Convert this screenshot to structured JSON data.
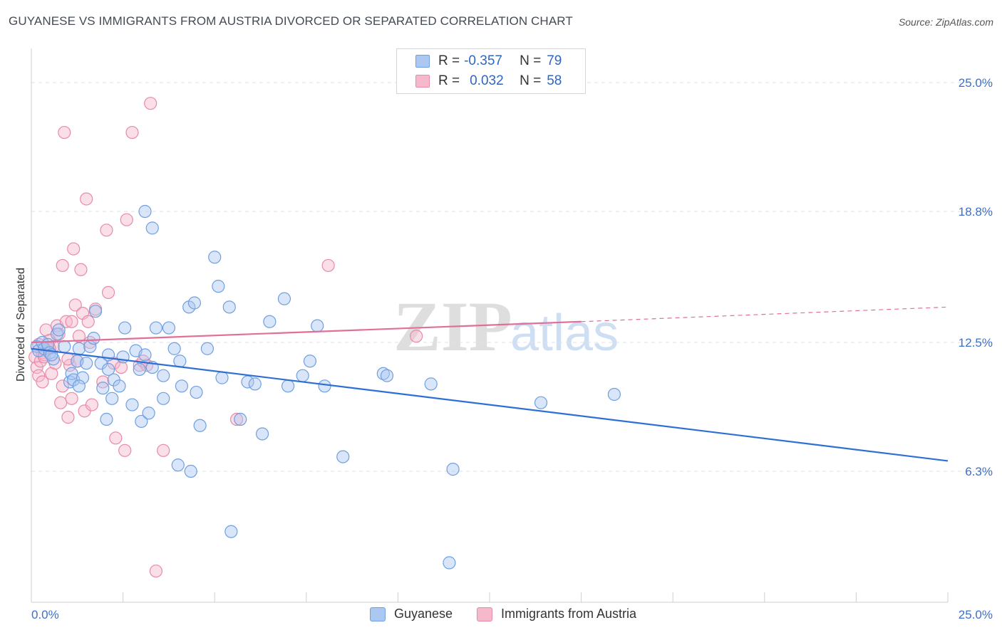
{
  "header": {
    "title": "GUYANESE VS IMMIGRANTS FROM AUSTRIA DIVORCED OR SEPARATED CORRELATION CHART",
    "source": "Source: ZipAtlas.com"
  },
  "legend": {
    "rows": [
      {
        "r_label": "R =",
        "r_value": "-0.357",
        "n_label": "N =",
        "n_value": "79"
      },
      {
        "r_label": "R =",
        "r_value": "0.032",
        "n_label": "N =",
        "n_value": "58"
      }
    ]
  },
  "bottom_legend": [
    "Guyanese",
    "Immigrants from Austria"
  ],
  "watermark": {
    "zip": "ZIP",
    "atlas": "atlas"
  },
  "colors": {
    "blue_fill": "#aac8f2",
    "blue_stroke": "#6f9fe0",
    "blue_line": "#2e6fd6",
    "pink_fill": "#f6b8cb",
    "pink_stroke": "#e98aa8",
    "pink_line": "#e07098",
    "tick_text": "#3d6fc9",
    "grid": "#dde2ea"
  },
  "chart_data": {
    "type": "scatter",
    "title": "GUYANESE VS IMMIGRANTS FROM AUSTRIA DIVORCED OR SEPARATED CORRELATION CHART",
    "xlabel": "",
    "ylabel": "Divorced or Separated",
    "xlim": [
      0,
      25
    ],
    "ylim": [
      0,
      26.3
    ],
    "x_tick_labels": [
      "0.0%",
      "25.0%"
    ],
    "y_ticks": [
      6.3,
      12.5,
      18.8,
      25.0
    ],
    "y_tick_labels": [
      "6.3%",
      "12.5%",
      "18.8%",
      "25.0%"
    ],
    "grid": true,
    "legend_position": "top-center",
    "series": [
      {
        "name": "Guyanese",
        "r": -0.357,
        "n": 79,
        "trend": {
          "x": [
            0.0,
            25.0
          ],
          "y": [
            12.2,
            6.8
          ]
        },
        "points": [
          [
            0.15,
            12.3
          ],
          [
            0.2,
            12.1
          ],
          [
            0.3,
            12.5
          ],
          [
            0.35,
            12.2
          ],
          [
            0.45,
            12.4
          ],
          [
            0.5,
            12.0
          ],
          [
            0.6,
            11.7
          ],
          [
            0.7,
            12.9
          ],
          [
            0.75,
            13.1
          ],
          [
            0.9,
            12.3
          ],
          [
            1.05,
            10.6
          ],
          [
            1.1,
            11.0
          ],
          [
            1.15,
            10.7
          ],
          [
            1.25,
            11.6
          ],
          [
            1.3,
            12.2
          ],
          [
            1.4,
            10.8
          ],
          [
            1.5,
            11.5
          ],
          [
            1.6,
            12.3
          ],
          [
            1.7,
            12.7
          ],
          [
            1.75,
            14.0
          ],
          [
            1.9,
            11.5
          ],
          [
            1.95,
            10.3
          ],
          [
            2.05,
            8.8
          ],
          [
            2.1,
            11.9
          ],
          [
            2.2,
            9.8
          ],
          [
            2.25,
            10.7
          ],
          [
            2.4,
            10.4
          ],
          [
            2.5,
            11.8
          ],
          [
            2.55,
            13.2
          ],
          [
            2.75,
            9.5
          ],
          [
            2.85,
            12.1
          ],
          [
            2.95,
            11.2
          ],
          [
            3.0,
            8.7
          ],
          [
            3.1,
            11.9
          ],
          [
            3.2,
            9.1
          ],
          [
            3.3,
            11.3
          ],
          [
            3.3,
            18.0
          ],
          [
            3.4,
            13.2
          ],
          [
            3.6,
            10.9
          ],
          [
            3.6,
            9.8
          ],
          [
            3.75,
            13.2
          ],
          [
            3.9,
            12.2
          ],
          [
            4.05,
            11.6
          ],
          [
            4.1,
            10.4
          ],
          [
            4.3,
            14.2
          ],
          [
            4.35,
            6.3
          ],
          [
            4.45,
            14.4
          ],
          [
            4.5,
            10.1
          ],
          [
            4.6,
            8.5
          ],
          [
            4.8,
            12.2
          ],
          [
            5.0,
            16.6
          ],
          [
            5.1,
            15.2
          ],
          [
            5.2,
            10.8
          ],
          [
            5.4,
            14.2
          ],
          [
            5.45,
            3.4
          ],
          [
            5.7,
            8.8
          ],
          [
            5.9,
            10.6
          ],
          [
            6.1,
            10.5
          ],
          [
            6.3,
            8.1
          ],
          [
            6.5,
            13.5
          ],
          [
            6.9,
            14.6
          ],
          [
            7.0,
            10.4
          ],
          [
            7.4,
            10.9
          ],
          [
            7.6,
            11.6
          ],
          [
            7.8,
            13.3
          ],
          [
            8.0,
            10.4
          ],
          [
            8.5,
            7.0
          ],
          [
            9.6,
            11.0
          ],
          [
            9.7,
            10.9
          ],
          [
            10.9,
            10.5
          ],
          [
            11.5,
            6.4
          ],
          [
            11.4,
            1.9
          ],
          [
            13.9,
            9.6
          ],
          [
            15.9,
            10.0
          ],
          [
            2.1,
            11.2
          ],
          [
            3.1,
            18.8
          ],
          [
            0.55,
            11.9
          ],
          [
            4.0,
            6.6
          ],
          [
            1.3,
            10.4
          ]
        ]
      },
      {
        "name": "Immigrants from Austria",
        "r": 0.032,
        "n": 58,
        "trend": {
          "x": [
            0.0,
            15.0
          ],
          "y": [
            12.5,
            13.5
          ]
        },
        "trend_dashed": {
          "x": [
            15.0,
            25.0
          ],
          "y": [
            13.5,
            14.2
          ]
        },
        "points": [
          [
            0.1,
            11.8
          ],
          [
            0.15,
            11.3
          ],
          [
            0.2,
            10.9
          ],
          [
            0.2,
            12.4
          ],
          [
            0.25,
            11.6
          ],
          [
            0.3,
            10.6
          ],
          [
            0.3,
            12.0
          ],
          [
            0.35,
            11.9
          ],
          [
            0.4,
            13.1
          ],
          [
            0.45,
            12.2
          ],
          [
            0.5,
            12.6
          ],
          [
            0.55,
            11.0
          ],
          [
            0.6,
            12.3
          ],
          [
            0.65,
            11.5
          ],
          [
            0.7,
            13.3
          ],
          [
            0.75,
            12.9
          ],
          [
            0.8,
            9.6
          ],
          [
            0.85,
            10.4
          ],
          [
            0.85,
            16.2
          ],
          [
            0.9,
            22.6
          ],
          [
            0.95,
            13.5
          ],
          [
            1.0,
            8.9
          ],
          [
            1.05,
            11.4
          ],
          [
            1.1,
            13.5
          ],
          [
            1.1,
            9.8
          ],
          [
            1.15,
            17.0
          ],
          [
            1.2,
            14.3
          ],
          [
            1.25,
            11.6
          ],
          [
            1.3,
            12.8
          ],
          [
            1.35,
            16.0
          ],
          [
            1.4,
            13.9
          ],
          [
            1.45,
            9.2
          ],
          [
            1.5,
            19.4
          ],
          [
            1.55,
            13.5
          ],
          [
            1.6,
            12.5
          ],
          [
            1.65,
            9.5
          ],
          [
            1.75,
            14.1
          ],
          [
            1.95,
            10.6
          ],
          [
            2.05,
            17.9
          ],
          [
            2.1,
            14.9
          ],
          [
            2.25,
            11.5
          ],
          [
            2.3,
            7.9
          ],
          [
            2.45,
            11.3
          ],
          [
            2.55,
            7.3
          ],
          [
            2.6,
            18.4
          ],
          [
            2.75,
            22.6
          ],
          [
            2.95,
            11.4
          ],
          [
            3.05,
            11.6
          ],
          [
            3.15,
            11.4
          ],
          [
            3.25,
            24.0
          ],
          [
            3.4,
            1.5
          ],
          [
            3.6,
            7.3
          ],
          [
            5.6,
            8.8
          ],
          [
            8.1,
            16.2
          ],
          [
            10.5,
            12.8
          ],
          [
            0.5,
            12.2
          ],
          [
            1.0,
            11.7
          ],
          [
            0.35,
            11.8
          ]
        ]
      }
    ]
  }
}
